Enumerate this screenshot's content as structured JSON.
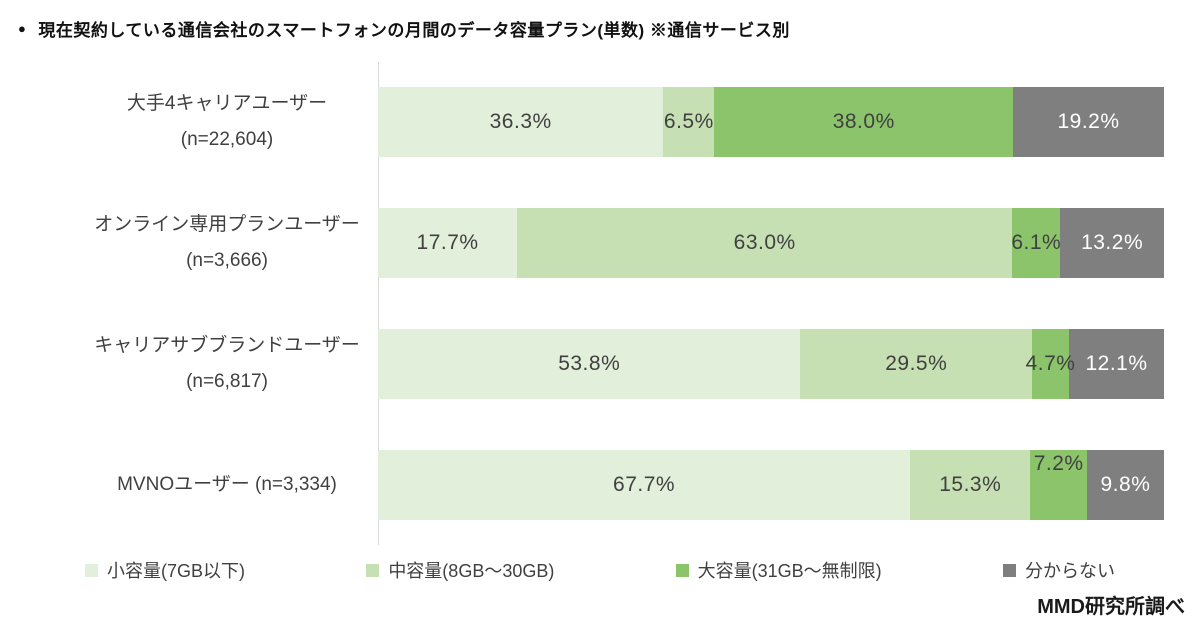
{
  "header": {
    "bullet": "●",
    "title": "現在契約している通信会社のスマートフォンの月間のデータ容量プラン(単数) ※通信サービス別"
  },
  "source": "MMD研究所調べ",
  "chart_data": {
    "type": "bar",
    "orientation": "horizontal",
    "stacked": true,
    "value_unit": "%",
    "xlim": [
      0,
      100
    ],
    "grid": false,
    "legend_position": "bottom",
    "axis_line_color": "#d9d9d9",
    "categories": [
      {
        "lines": [
          "大手4キャリアユーザー",
          "(n=22,604)"
        ]
      },
      {
        "lines": [
          "オンライン専用プランユーザー",
          "(n=3,666)"
        ]
      },
      {
        "lines": [
          "キャリアサブブランドユーザー",
          "(n=6,817)"
        ]
      },
      {
        "lines": [
          "MVNOユーザー (n=3,334)"
        ]
      }
    ],
    "series": [
      {
        "name": "小容量(7GB以下)",
        "color": "#e2efda",
        "label_color": "#404040",
        "values": [
          36.3,
          17.7,
          53.8,
          67.7
        ]
      },
      {
        "name": "中容量(8GB〜30GB)",
        "color": "#c6e0b4",
        "label_color": "#404040",
        "values": [
          6.5,
          63.0,
          29.5,
          15.3
        ]
      },
      {
        "name": "大容量(31GB〜無制限)",
        "color": "#8bc46a",
        "label_color": "#404040",
        "values": [
          38.0,
          6.1,
          4.7,
          7.2
        ]
      },
      {
        "name": "分からない",
        "color": "#7f7f7f",
        "label_color": "#ffffff",
        "values": [
          19.2,
          13.2,
          12.1,
          9.8
        ]
      }
    ],
    "raised_labels": [
      {
        "row": 3,
        "series": 2
      }
    ]
  }
}
